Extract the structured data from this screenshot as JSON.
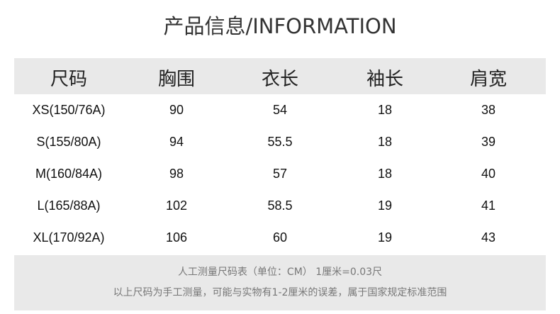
{
  "title": "产品信息/INFORMATION",
  "headers": [
    "尺码",
    "胸围",
    "衣长",
    "袖长",
    "肩宽"
  ],
  "rows": [
    [
      "XS(150/76A)",
      "90",
      "54",
      "18",
      "38"
    ],
    [
      "S(155/80A)",
      "94",
      "55.5",
      "18",
      "39"
    ],
    [
      "M(160/84A)",
      "98",
      "57",
      "18",
      "40"
    ],
    [
      "L(165/88A)",
      "102",
      "58.5",
      "19",
      "41"
    ],
    [
      "XL(170/92A)",
      "106",
      "60",
      "19",
      "43"
    ]
  ],
  "notes": [
    "人工测量尺码表（单位：CM） 1厘米=0.03尺",
    "以上尺码为手工测量，可能与实物有1-2厘米的误差，属于国家规定标准范围"
  ]
}
